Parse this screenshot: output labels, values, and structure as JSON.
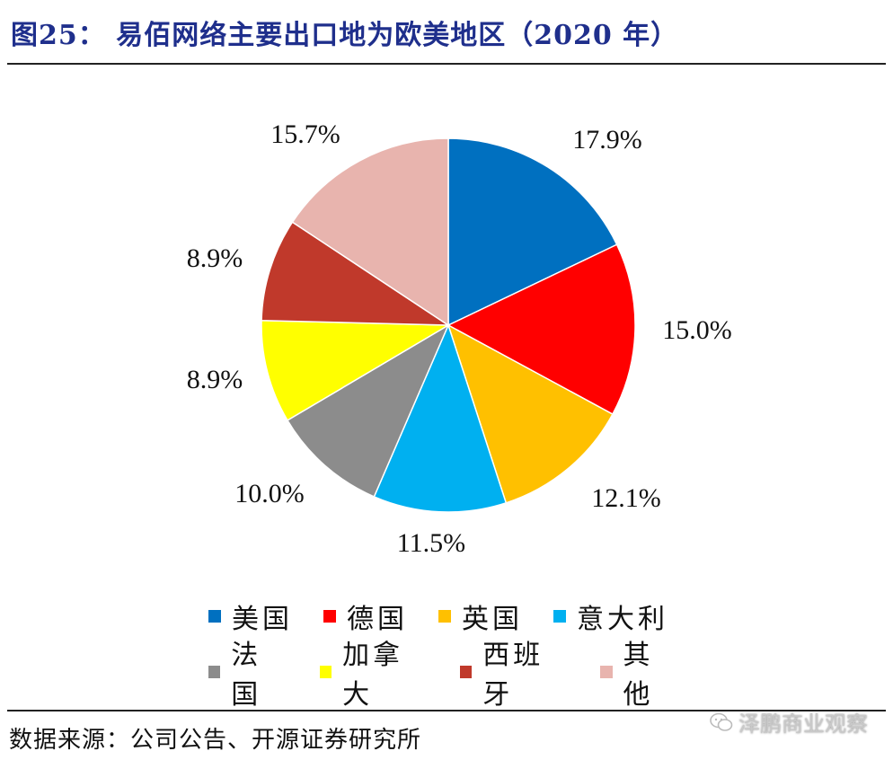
{
  "figure": {
    "title": "图25： 易佰网络主要出口地为欧美地区（2020 年）",
    "source": "数据来源：公司公告、开源证券研究所",
    "watermark": "泽鹏商业观察"
  },
  "chart_data": {
    "type": "pie",
    "start": "12 o'clock, clockwise",
    "slices": [
      {
        "name": "美国",
        "value": 17.9,
        "label": "17.9%",
        "color": "#0070c0"
      },
      {
        "name": "德国",
        "value": 15.0,
        "label": "15.0%",
        "color": "#ff0000"
      },
      {
        "name": "英国",
        "value": 12.1,
        "label": "12.1%",
        "color": "#ffc000"
      },
      {
        "name": "意大利",
        "value": 11.5,
        "label": "11.5%",
        "color": "#00b0f0"
      },
      {
        "name": "法国",
        "value": 10.0,
        "label": "10.0%",
        "color": "#8c8c8c"
      },
      {
        "name": "加拿大",
        "value": 8.9,
        "label": "8.9%",
        "color": "#ffff00"
      },
      {
        "name": "西班牙",
        "value": 8.9,
        "label": "8.9%",
        "color": "#c0392b"
      },
      {
        "name": "其他",
        "value": 15.7,
        "label": "15.7%",
        "color": "#e8b4ae"
      }
    ],
    "legend_position": "bottom"
  }
}
